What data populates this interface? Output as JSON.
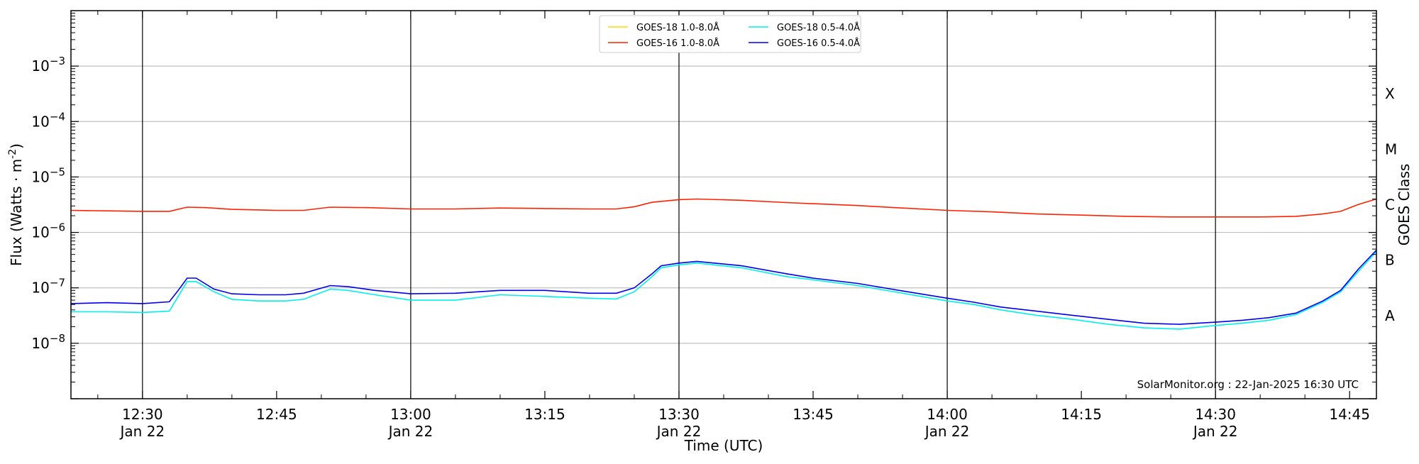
{
  "chart_data": {
    "type": "line",
    "xlabel": "Time (UTC)",
    "ylabel": "Flux (Watts · m",
    "ylabel_superscript": "-2",
    "ylabel_suffix": ")",
    "right_label": "GOES Class",
    "credit": "SolarMonitor.org : 22-Jan-2025 16:30 UTC",
    "y_scale": "log",
    "ylim": [
      1e-09,
      0.01
    ],
    "xlim": [
      "12:22",
      "14:48"
    ],
    "grid": "horizontal at decades",
    "legend_position": "top-center",
    "x_ticks": [
      {
        "t": "12:30",
        "line1": "12:30",
        "line2": "Jan 22",
        "major": true
      },
      {
        "t": "12:45",
        "line1": "12:45",
        "line2": "",
        "major": false
      },
      {
        "t": "13:00",
        "line1": "13:00",
        "line2": "Jan 22",
        "major": true
      },
      {
        "t": "13:15",
        "line1": "13:15",
        "line2": "",
        "major": false
      },
      {
        "t": "13:30",
        "line1": "13:30",
        "line2": "Jan 22",
        "major": true
      },
      {
        "t": "13:45",
        "line1": "13:45",
        "line2": "",
        "major": false
      },
      {
        "t": "14:00",
        "line1": "14:00",
        "line2": "Jan 22",
        "major": true
      },
      {
        "t": "14:15",
        "line1": "14:15",
        "line2": "",
        "major": false
      },
      {
        "t": "14:30",
        "line1": "14:30",
        "line2": "Jan 22",
        "major": true
      },
      {
        "t": "14:45",
        "line1": "14:45",
        "line2": "",
        "major": false
      }
    ],
    "y_ticks": [
      {
        "exp": -8,
        "base": "10",
        "sup": "−8"
      },
      {
        "exp": -7,
        "base": "10",
        "sup": "−7"
      },
      {
        "exp": -6,
        "base": "10",
        "sup": "−6"
      },
      {
        "exp": -5,
        "base": "10",
        "sup": "−5"
      },
      {
        "exp": -4,
        "base": "10",
        "sup": "−4"
      },
      {
        "exp": -3,
        "base": "10",
        "sup": "−3"
      }
    ],
    "goes_classes": [
      {
        "label": "A",
        "exp": -7.5
      },
      {
        "label": "B",
        "exp": -6.5
      },
      {
        "label": "C",
        "exp": -5.5
      },
      {
        "label": "M",
        "exp": -4.5
      },
      {
        "label": "X",
        "exp": -3.5
      }
    ],
    "series": [
      {
        "name": "GOES-18 1.0-8.0Å",
        "color": "#ffd700",
        "points": []
      },
      {
        "name": "GOES-16 1.0-8.0Å",
        "color": "#ff2200",
        "points": [
          [
            "12:22",
            2.5e-06
          ],
          [
            "12:26",
            2.45e-06
          ],
          [
            "12:30",
            2.4e-06
          ],
          [
            "12:33",
            2.4e-06
          ],
          [
            "12:35",
            2.85e-06
          ],
          [
            "12:37",
            2.8e-06
          ],
          [
            "12:40",
            2.6e-06
          ],
          [
            "12:45",
            2.5e-06
          ],
          [
            "12:48",
            2.5e-06
          ],
          [
            "12:51",
            2.85e-06
          ],
          [
            "12:55",
            2.8e-06
          ],
          [
            "13:00",
            2.65e-06
          ],
          [
            "13:05",
            2.65e-06
          ],
          [
            "13:10",
            2.75e-06
          ],
          [
            "13:15",
            2.7e-06
          ],
          [
            "13:20",
            2.65e-06
          ],
          [
            "13:23",
            2.65e-06
          ],
          [
            "13:25",
            2.9e-06
          ],
          [
            "13:27",
            3.5e-06
          ],
          [
            "13:30",
            3.9e-06
          ],
          [
            "13:32",
            4e-06
          ],
          [
            "13:37",
            3.8e-06
          ],
          [
            "13:42",
            3.45e-06
          ],
          [
            "13:45",
            3.3e-06
          ],
          [
            "13:50",
            3.05e-06
          ],
          [
            "13:55",
            2.75e-06
          ],
          [
            "14:00",
            2.5e-06
          ],
          [
            "14:05",
            2.35e-06
          ],
          [
            "14:10",
            2.15e-06
          ],
          [
            "14:15",
            2.05e-06
          ],
          [
            "14:20",
            1.95e-06
          ],
          [
            "14:25",
            1.9e-06
          ],
          [
            "14:30",
            1.9e-06
          ],
          [
            "14:35",
            1.9e-06
          ],
          [
            "14:39",
            1.95e-06
          ],
          [
            "14:42",
            2.15e-06
          ],
          [
            "14:44",
            2.4e-06
          ],
          [
            "14:46",
            3.2e-06
          ],
          [
            "14:48",
            4e-06
          ]
        ]
      },
      {
        "name": "GOES-18 0.5-4.0Å",
        "color": "#00f0f0",
        "points": [
          [
            "12:22",
            3.7e-08
          ],
          [
            "12:26",
            3.7e-08
          ],
          [
            "12:30",
            3.6e-08
          ],
          [
            "12:33",
            3.8e-08
          ],
          [
            "12:34",
            7e-08
          ],
          [
            "12:35",
            1.3e-07
          ],
          [
            "12:36",
            1.3e-07
          ],
          [
            "12:38",
            8.5e-08
          ],
          [
            "12:40",
            6.2e-08
          ],
          [
            "12:43",
            5.8e-08
          ],
          [
            "12:46",
            5.8e-08
          ],
          [
            "12:48",
            6.2e-08
          ],
          [
            "12:51",
            9.5e-08
          ],
          [
            "12:53",
            9e-08
          ],
          [
            "12:56",
            7.5e-08
          ],
          [
            "13:00",
            6e-08
          ],
          [
            "13:05",
            6e-08
          ],
          [
            "13:10",
            7.5e-08
          ],
          [
            "13:15",
            7e-08
          ],
          [
            "13:20",
            6.5e-08
          ],
          [
            "13:23",
            6.3e-08
          ],
          [
            "13:25",
            8.5e-08
          ],
          [
            "13:27",
            1.6e-07
          ],
          [
            "13:28",
            2.3e-07
          ],
          [
            "13:30",
            2.6e-07
          ],
          [
            "13:32",
            2.8e-07
          ],
          [
            "13:37",
            2.3e-07
          ],
          [
            "13:42",
            1.6e-07
          ],
          [
            "13:45",
            1.4e-07
          ],
          [
            "13:50",
            1.1e-07
          ],
          [
            "13:55",
            8e-08
          ],
          [
            "14:00",
            5.8e-08
          ],
          [
            "14:03",
            5e-08
          ],
          [
            "14:06",
            4e-08
          ],
          [
            "14:10",
            3.2e-08
          ],
          [
            "14:14",
            2.7e-08
          ],
          [
            "14:18",
            2.2e-08
          ],
          [
            "14:22",
            1.9e-08
          ],
          [
            "14:26",
            1.8e-08
          ],
          [
            "14:30",
            2.1e-08
          ],
          [
            "14:33",
            2.3e-08
          ],
          [
            "14:36",
            2.6e-08
          ],
          [
            "14:39",
            3.3e-08
          ],
          [
            "14:42",
            5.5e-08
          ],
          [
            "14:44",
            8.5e-08
          ],
          [
            "14:46",
            2e-07
          ],
          [
            "14:48",
            4.5e-07
          ]
        ]
      },
      {
        "name": "GOES-16 0.5-4.0Å",
        "color": "#0000ee",
        "points": [
          [
            "12:22",
            5.2e-08
          ],
          [
            "12:26",
            5.4e-08
          ],
          [
            "12:30",
            5.2e-08
          ],
          [
            "12:33",
            5.6e-08
          ],
          [
            "12:34",
            9e-08
          ],
          [
            "12:35",
            1.5e-07
          ],
          [
            "12:36",
            1.5e-07
          ],
          [
            "12:38",
            9.5e-08
          ],
          [
            "12:40",
            7.8e-08
          ],
          [
            "12:43",
            7.5e-08
          ],
          [
            "12:46",
            7.5e-08
          ],
          [
            "12:48",
            8e-08
          ],
          [
            "12:51",
            1.1e-07
          ],
          [
            "12:53",
            1.05e-07
          ],
          [
            "12:56",
            9e-08
          ],
          [
            "13:00",
            7.8e-08
          ],
          [
            "13:05",
            8e-08
          ],
          [
            "13:10",
            9e-08
          ],
          [
            "13:15",
            9e-08
          ],
          [
            "13:20",
            8e-08
          ],
          [
            "13:23",
            8e-08
          ],
          [
            "13:25",
            1e-07
          ],
          [
            "13:27",
            1.8e-07
          ],
          [
            "13:28",
            2.5e-07
          ],
          [
            "13:30",
            2.8e-07
          ],
          [
            "13:32",
            3e-07
          ],
          [
            "13:37",
            2.5e-07
          ],
          [
            "13:42",
            1.8e-07
          ],
          [
            "13:45",
            1.5e-07
          ],
          [
            "13:50",
            1.2e-07
          ],
          [
            "13:55",
            8.8e-08
          ],
          [
            "14:00",
            6.5e-08
          ],
          [
            "14:03",
            5.5e-08
          ],
          [
            "14:06",
            4.5e-08
          ],
          [
            "14:10",
            3.8e-08
          ],
          [
            "14:14",
            3.2e-08
          ],
          [
            "14:18",
            2.7e-08
          ],
          [
            "14:22",
            2.3e-08
          ],
          [
            "14:26",
            2.2e-08
          ],
          [
            "14:30",
            2.4e-08
          ],
          [
            "14:33",
            2.6e-08
          ],
          [
            "14:36",
            2.9e-08
          ],
          [
            "14:39",
            3.5e-08
          ],
          [
            "14:42",
            5.8e-08
          ],
          [
            "14:44",
            9e-08
          ],
          [
            "14:46",
            2.2e-07
          ],
          [
            "14:48",
            4.8e-07
          ]
        ]
      }
    ]
  }
}
